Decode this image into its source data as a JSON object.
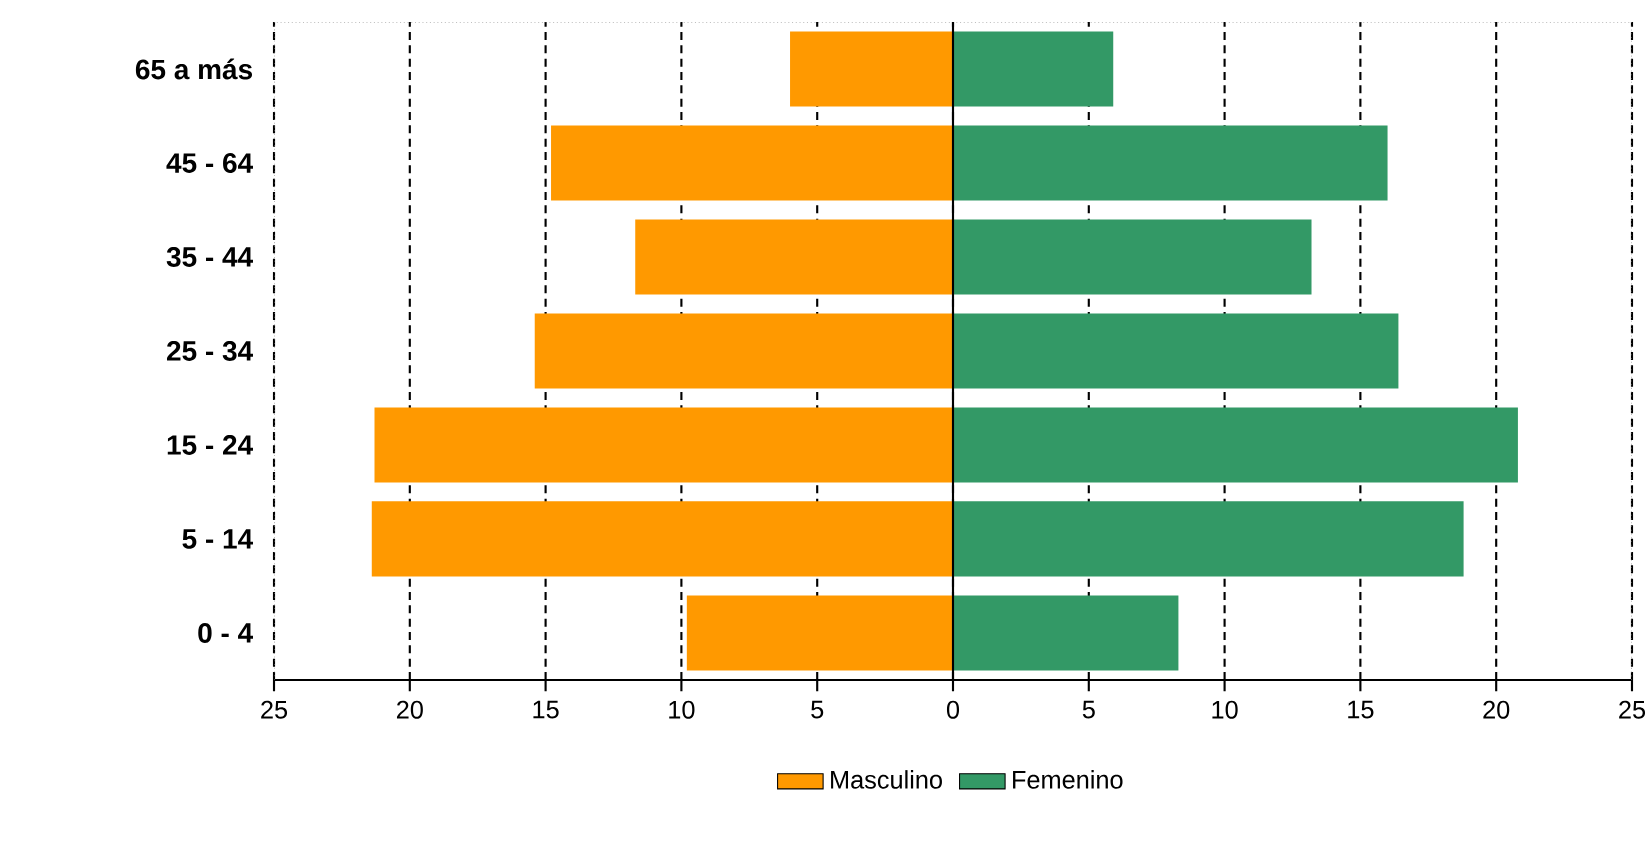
{
  "chart_data": {
    "type": "bar",
    "orientation": "horizontal",
    "categories": [
      "65 a más",
      "45 - 64",
      "35 - 44",
      "25 - 34",
      "15 - 24",
      "5 - 14",
      "0 - 4"
    ],
    "series": [
      {
        "name": "Masculino",
        "color": "#ff9900",
        "values": [
          -6.0,
          -14.8,
          -11.7,
          -15.4,
          -21.3,
          -21.4,
          -9.8
        ]
      },
      {
        "name": "Femenino",
        "color": "#339966",
        "values": [
          5.9,
          16.0,
          13.2,
          16.4,
          20.8,
          18.8,
          8.3
        ]
      }
    ],
    "xlim": [
      -25,
      25
    ],
    "xticks": [
      {
        "value": -25,
        "label": "25"
      },
      {
        "value": -20,
        "label": "20"
      },
      {
        "value": -15,
        "label": "15"
      },
      {
        "value": -10,
        "label": "10"
      },
      {
        "value": -5,
        "label": "5"
      },
      0,
      5,
      10,
      15,
      20,
      25
    ],
    "stacked": true,
    "grid": "x",
    "legend": "bottom"
  }
}
